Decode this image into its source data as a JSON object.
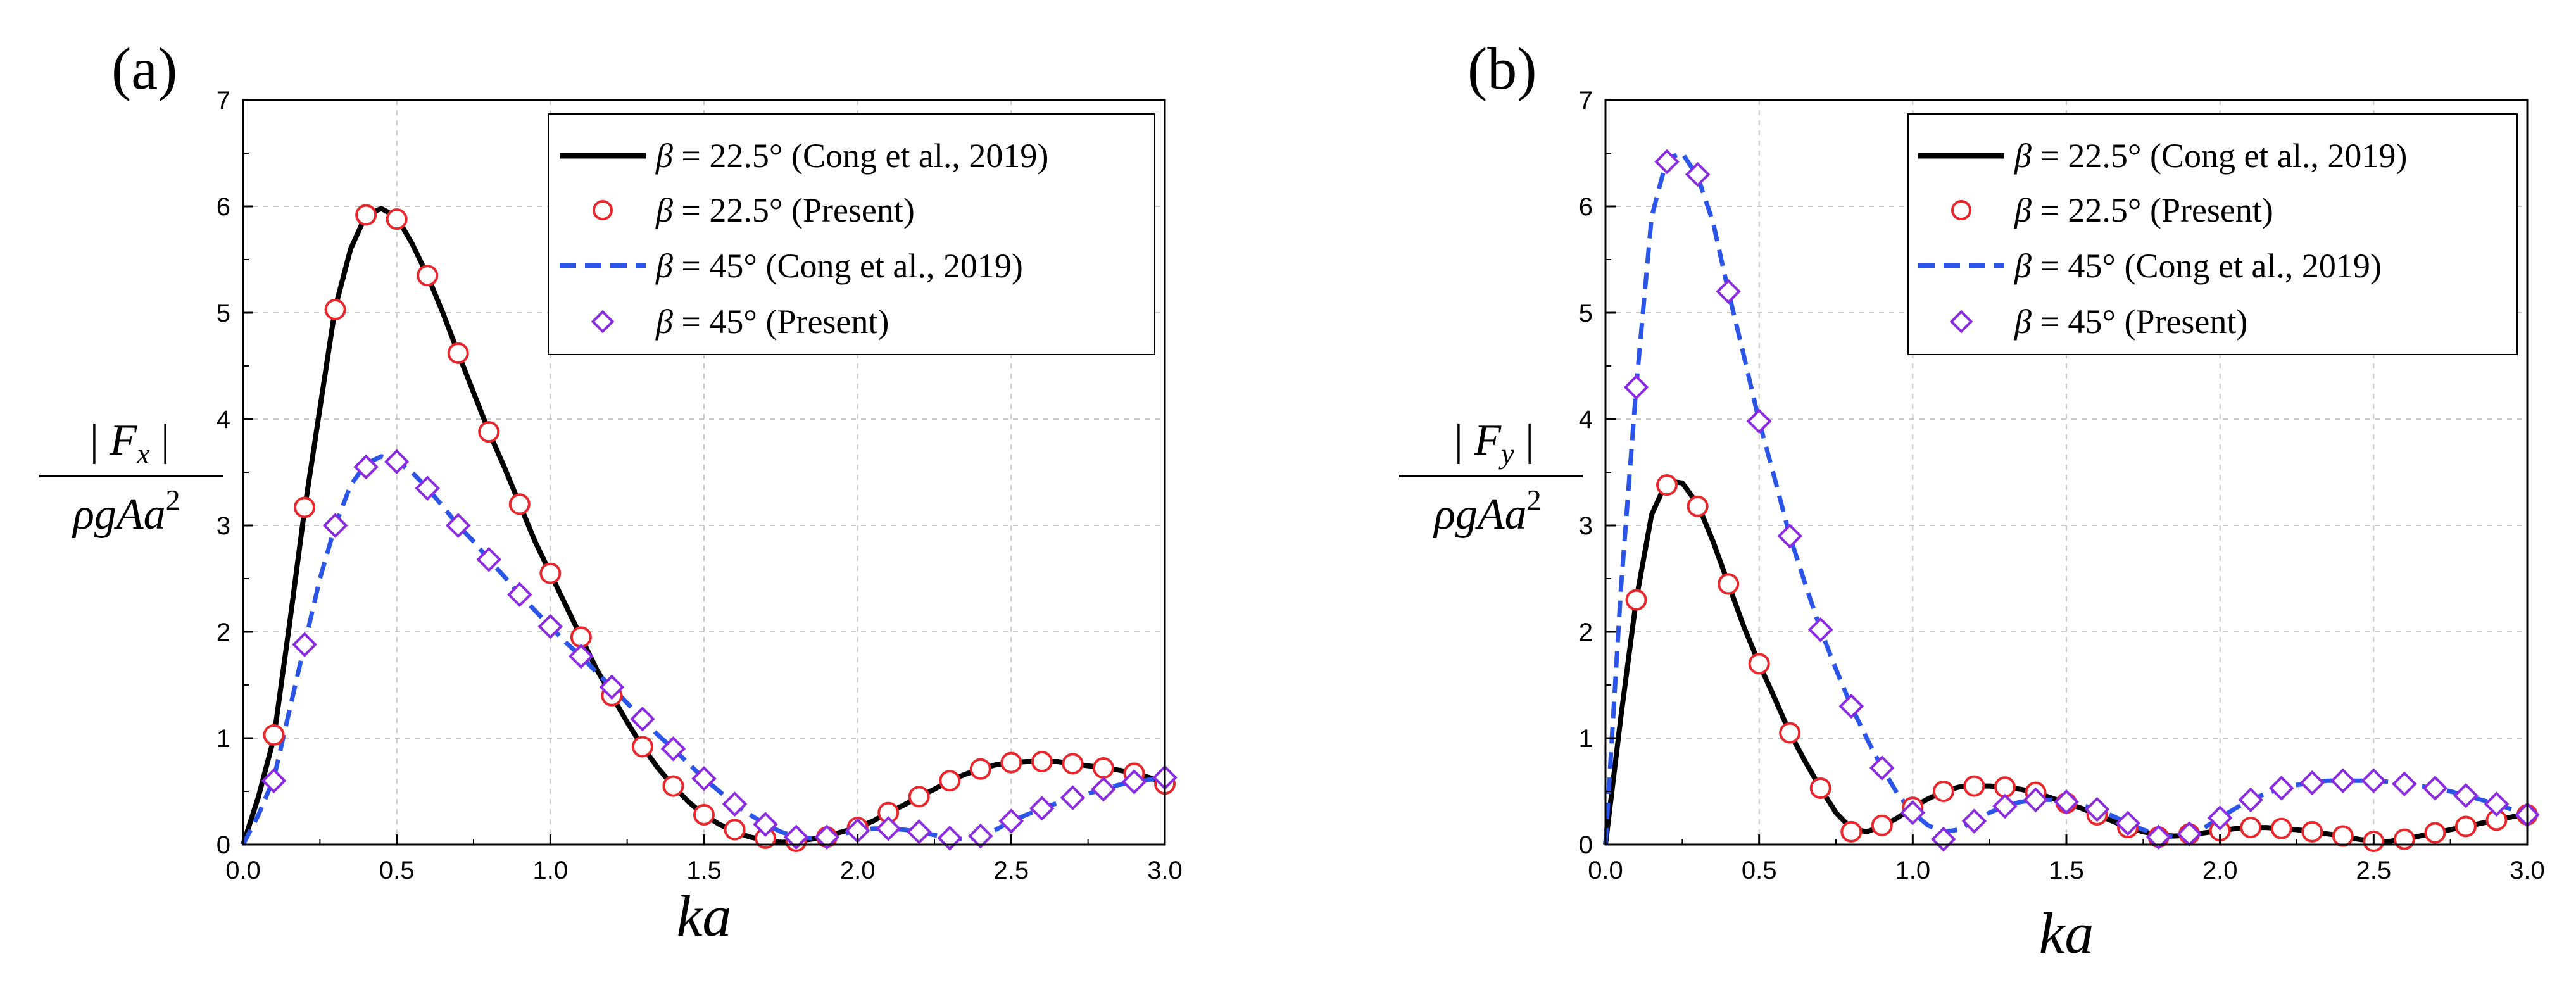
{
  "chart_data": [
    {
      "type": "line",
      "panel_label": "(a)",
      "xlabel": "ka",
      "ylabel": {
        "numerator_prefix": "| ",
        "numerator_symbol": "F",
        "numerator_sub": "x",
        "numerator_suffix": " |",
        "denominator": "ρgAa",
        "denominator_sup": "2"
      },
      "xlim": [
        0.0,
        3.0
      ],
      "ylim": [
        0,
        7
      ],
      "xticks": [
        "0.0",
        "0.5",
        "1.0",
        "1.5",
        "2.0",
        "2.5",
        "3.0"
      ],
      "yticks": [
        "0",
        "1",
        "2",
        "3",
        "4",
        "5",
        "6",
        "7"
      ],
      "grid": true,
      "legend_position": "top-right",
      "legend": [
        {
          "symbol": "β",
          "text": " = 22.5° (Cong et al., 2019)"
        },
        {
          "symbol": "β",
          "text": " = 22.5° (Present)"
        },
        {
          "symbol": "β",
          "text": " = 45° (Cong et al., 2019)"
        },
        {
          "symbol": "β",
          "text": " = 45° (Present)"
        }
      ],
      "series": [
        {
          "name": "β = 22.5° (Cong et al., 2019)",
          "style": "solid",
          "color": "#000000",
          "x": [
            0.0,
            0.05,
            0.1,
            0.15,
            0.2,
            0.25,
            0.3,
            0.35,
            0.4,
            0.45,
            0.5,
            0.55,
            0.6,
            0.65,
            0.7,
            0.75,
            0.8,
            0.85,
            0.9,
            0.95,
            1.0,
            1.05,
            1.1,
            1.15,
            1.2,
            1.25,
            1.3,
            1.35,
            1.4,
            1.45,
            1.5,
            1.55,
            1.6,
            1.65,
            1.7,
            1.75,
            1.8,
            1.85,
            1.9,
            1.95,
            2.0,
            2.05,
            2.1,
            2.15,
            2.2,
            2.25,
            2.3,
            2.35,
            2.4,
            2.45,
            2.5,
            2.55,
            2.6,
            2.65,
            2.7,
            2.75,
            2.8,
            2.85,
            2.9,
            2.95,
            3.0
          ],
          "y": [
            0.0,
            0.45,
            1.0,
            2.05,
            3.15,
            4.1,
            5.05,
            5.6,
            5.92,
            5.98,
            5.9,
            5.65,
            5.35,
            5.0,
            4.62,
            4.25,
            3.88,
            3.55,
            3.2,
            2.85,
            2.55,
            2.25,
            1.95,
            1.65,
            1.4,
            1.15,
            0.92,
            0.72,
            0.55,
            0.4,
            0.28,
            0.19,
            0.12,
            0.07,
            0.04,
            0.02,
            0.03,
            0.05,
            0.08,
            0.12,
            0.16,
            0.22,
            0.3,
            0.37,
            0.45,
            0.52,
            0.6,
            0.66,
            0.71,
            0.75,
            0.77,
            0.78,
            0.78,
            0.78,
            0.76,
            0.74,
            0.72,
            0.7,
            0.67,
            0.63,
            0.57
          ]
        },
        {
          "name": "β = 22.5° (Present)",
          "style": "marker-circle",
          "color": "#e8262b",
          "x": [
            0.1,
            0.2,
            0.3,
            0.4,
            0.5,
            0.6,
            0.7,
            0.8,
            0.9,
            1.0,
            1.1,
            1.2,
            1.3,
            1.4,
            1.5,
            1.6,
            1.7,
            1.8,
            1.9,
            2.0,
            2.1,
            2.2,
            2.3,
            2.4,
            2.5,
            2.6,
            2.7,
            2.8,
            2.9,
            3.0
          ],
          "y": [
            1.03,
            3.17,
            5.03,
            5.92,
            5.88,
            5.35,
            4.62,
            3.88,
            3.2,
            2.55,
            1.95,
            1.4,
            0.92,
            0.55,
            0.28,
            0.14,
            0.06,
            0.03,
            0.07,
            0.16,
            0.3,
            0.45,
            0.6,
            0.71,
            0.77,
            0.78,
            0.76,
            0.72,
            0.67,
            0.57
          ]
        },
        {
          "name": "β = 45° (Cong et al., 2019)",
          "style": "dashed",
          "color": "#2a55e8",
          "x": [
            0.0,
            0.05,
            0.1,
            0.15,
            0.2,
            0.25,
            0.3,
            0.35,
            0.4,
            0.45,
            0.5,
            0.55,
            0.6,
            0.65,
            0.7,
            0.75,
            0.8,
            0.85,
            0.9,
            0.95,
            1.0,
            1.05,
            1.1,
            1.15,
            1.2,
            1.25,
            1.3,
            1.35,
            1.4,
            1.45,
            1.5,
            1.55,
            1.6,
            1.65,
            1.7,
            1.75,
            1.8,
            1.85,
            1.9,
            1.95,
            2.0,
            2.05,
            2.1,
            2.15,
            2.2,
            2.25,
            2.3,
            2.35,
            2.4,
            2.45,
            2.5,
            2.55,
            2.6,
            2.65,
            2.7,
            2.75,
            2.8,
            2.85,
            2.9,
            2.95,
            3.0
          ],
          "y": [
            0.0,
            0.28,
            0.62,
            1.25,
            1.88,
            2.5,
            3.0,
            3.38,
            3.58,
            3.65,
            3.6,
            3.5,
            3.35,
            3.18,
            3.0,
            2.85,
            2.68,
            2.52,
            2.35,
            2.2,
            2.05,
            1.9,
            1.77,
            1.62,
            1.48,
            1.33,
            1.18,
            1.03,
            0.9,
            0.76,
            0.62,
            0.5,
            0.38,
            0.28,
            0.19,
            0.12,
            0.07,
            0.06,
            0.07,
            0.1,
            0.13,
            0.15,
            0.15,
            0.14,
            0.12,
            0.09,
            0.06,
            0.05,
            0.08,
            0.14,
            0.22,
            0.28,
            0.34,
            0.39,
            0.44,
            0.48,
            0.52,
            0.56,
            0.59,
            0.61,
            0.63
          ]
        },
        {
          "name": "β = 45° (Present)",
          "style": "marker-diamond",
          "color": "#8a2be2",
          "x": [
            0.1,
            0.2,
            0.3,
            0.4,
            0.5,
            0.6,
            0.7,
            0.8,
            0.9,
            1.0,
            1.1,
            1.2,
            1.3,
            1.4,
            1.5,
            1.6,
            1.7,
            1.8,
            1.9,
            2.0,
            2.1,
            2.2,
            2.3,
            2.4,
            2.5,
            2.6,
            2.7,
            2.8,
            2.9,
            3.0
          ],
          "y": [
            0.6,
            1.88,
            3.0,
            3.55,
            3.6,
            3.35,
            3.0,
            2.68,
            2.35,
            2.05,
            1.77,
            1.48,
            1.18,
            0.9,
            0.62,
            0.38,
            0.19,
            0.07,
            0.07,
            0.13,
            0.15,
            0.12,
            0.06,
            0.08,
            0.22,
            0.34,
            0.44,
            0.52,
            0.59,
            0.63
          ]
        }
      ]
    },
    {
      "type": "line",
      "panel_label": "(b)",
      "xlabel": "ka",
      "ylabel": {
        "numerator_prefix": "| ",
        "numerator_symbol": "F",
        "numerator_sub": "y",
        "numerator_suffix": " |",
        "denominator": "ρgAa",
        "denominator_sup": "2"
      },
      "xlim": [
        0.0,
        3.0
      ],
      "ylim": [
        0,
        7
      ],
      "xticks": [
        "0.0",
        "0.5",
        "1.0",
        "1.5",
        "2.0",
        "2.5",
        "3.0"
      ],
      "yticks": [
        "0",
        "1",
        "2",
        "3",
        "4",
        "5",
        "6",
        "7"
      ],
      "grid": true,
      "legend_position": "top-right",
      "legend": [
        {
          "symbol": "β",
          "text": " = 22.5° (Cong et al., 2019)"
        },
        {
          "symbol": "β",
          "text": " = 22.5° (Present)"
        },
        {
          "symbol": "β",
          "text": " = 45° (Cong et al., 2019)"
        },
        {
          "symbol": "β",
          "text": " = 45° (Present)"
        }
      ],
      "series": [
        {
          "name": "β = 22.5° (Cong et al., 2019)",
          "style": "solid",
          "color": "#000000",
          "x": [
            0.0,
            0.05,
            0.1,
            0.15,
            0.2,
            0.25,
            0.3,
            0.35,
            0.4,
            0.45,
            0.5,
            0.55,
            0.6,
            0.65,
            0.7,
            0.75,
            0.8,
            0.85,
            0.9,
            0.95,
            1.0,
            1.05,
            1.1,
            1.15,
            1.2,
            1.25,
            1.3,
            1.35,
            1.4,
            1.45,
            1.5,
            1.55,
            1.6,
            1.65,
            1.7,
            1.75,
            1.8,
            1.85,
            1.9,
            1.95,
            2.0,
            2.05,
            2.1,
            2.15,
            2.2,
            2.25,
            2.3,
            2.35,
            2.4,
            2.45,
            2.5,
            2.55,
            2.6,
            2.65,
            2.7,
            2.75,
            2.8,
            2.85,
            2.9,
            2.95,
            3.0
          ],
          "y": [
            0.0,
            1.2,
            2.3,
            3.1,
            3.42,
            3.4,
            3.2,
            2.85,
            2.45,
            2.05,
            1.7,
            1.38,
            1.05,
            0.78,
            0.53,
            0.3,
            0.15,
            0.12,
            0.17,
            0.25,
            0.35,
            0.43,
            0.5,
            0.54,
            0.55,
            0.55,
            0.54,
            0.52,
            0.49,
            0.44,
            0.39,
            0.34,
            0.28,
            0.22,
            0.16,
            0.12,
            0.09,
            0.08,
            0.09,
            0.11,
            0.13,
            0.15,
            0.16,
            0.16,
            0.15,
            0.14,
            0.12,
            0.1,
            0.08,
            0.05,
            0.03,
            0.03,
            0.05,
            0.08,
            0.11,
            0.14,
            0.17,
            0.2,
            0.23,
            0.26,
            0.28
          ]
        },
        {
          "name": "β = 22.5° (Present)",
          "style": "marker-circle",
          "color": "#e8262b",
          "x": [
            0.1,
            0.2,
            0.3,
            0.4,
            0.5,
            0.6,
            0.7,
            0.8,
            0.9,
            1.0,
            1.1,
            1.2,
            1.3,
            1.4,
            1.5,
            1.6,
            1.7,
            1.8,
            1.9,
            2.0,
            2.1,
            2.2,
            2.3,
            2.4,
            2.5,
            2.6,
            2.7,
            2.8,
            2.9,
            3.0
          ],
          "y": [
            2.3,
            3.38,
            3.18,
            2.45,
            1.7,
            1.05,
            0.53,
            0.12,
            0.18,
            0.35,
            0.5,
            0.55,
            0.54,
            0.49,
            0.39,
            0.28,
            0.16,
            0.07,
            0.1,
            0.13,
            0.16,
            0.15,
            0.12,
            0.08,
            0.03,
            0.05,
            0.11,
            0.17,
            0.23,
            0.28
          ]
        },
        {
          "name": "β = 45° (Cong et al., 2019)",
          "style": "dashed",
          "color": "#2a55e8",
          "x": [
            0.0,
            0.05,
            0.1,
            0.15,
            0.2,
            0.25,
            0.3,
            0.35,
            0.4,
            0.45,
            0.5,
            0.55,
            0.6,
            0.65,
            0.7,
            0.75,
            0.8,
            0.85,
            0.9,
            0.95,
            1.0,
            1.05,
            1.1,
            1.15,
            1.2,
            1.25,
            1.3,
            1.35,
            1.4,
            1.45,
            1.5,
            1.55,
            1.6,
            1.65,
            1.7,
            1.75,
            1.8,
            1.85,
            1.9,
            1.95,
            2.0,
            2.05,
            2.1,
            2.15,
            2.2,
            2.25,
            2.3,
            2.35,
            2.4,
            2.45,
            2.5,
            2.55,
            2.6,
            2.65,
            2.7,
            2.75,
            2.8,
            2.85,
            2.9,
            2.95,
            3.0
          ],
          "y": [
            0.0,
            2.4,
            4.3,
            5.9,
            6.45,
            6.5,
            6.28,
            5.85,
            5.2,
            4.6,
            3.98,
            3.45,
            2.9,
            2.45,
            2.02,
            1.65,
            1.3,
            1.0,
            0.72,
            0.48,
            0.3,
            0.18,
            0.12,
            0.14,
            0.22,
            0.3,
            0.36,
            0.4,
            0.42,
            0.42,
            0.4,
            0.37,
            0.33,
            0.27,
            0.2,
            0.14,
            0.09,
            0.07,
            0.1,
            0.16,
            0.25,
            0.34,
            0.42,
            0.48,
            0.53,
            0.56,
            0.58,
            0.6,
            0.6,
            0.6,
            0.6,
            0.59,
            0.57,
            0.55,
            0.53,
            0.5,
            0.46,
            0.42,
            0.38,
            0.33,
            0.28
          ]
        },
        {
          "name": "β = 45° (Present)",
          "style": "marker-diamond",
          "color": "#8a2be2",
          "x": [
            0.1,
            0.2,
            0.3,
            0.4,
            0.5,
            0.6,
            0.7,
            0.8,
            0.9,
            1.0,
            1.1,
            1.2,
            1.3,
            1.4,
            1.5,
            1.6,
            1.7,
            1.8,
            1.9,
            2.0,
            2.1,
            2.2,
            2.3,
            2.4,
            2.5,
            2.6,
            2.7,
            2.8,
            2.9,
            3.0
          ],
          "y": [
            4.3,
            6.42,
            6.3,
            5.2,
            3.98,
            2.9,
            2.02,
            1.3,
            0.72,
            0.3,
            0.05,
            0.22,
            0.36,
            0.42,
            0.4,
            0.33,
            0.2,
            0.07,
            0.1,
            0.25,
            0.42,
            0.53,
            0.58,
            0.6,
            0.6,
            0.57,
            0.53,
            0.46,
            0.38,
            0.28
          ]
        }
      ]
    }
  ]
}
